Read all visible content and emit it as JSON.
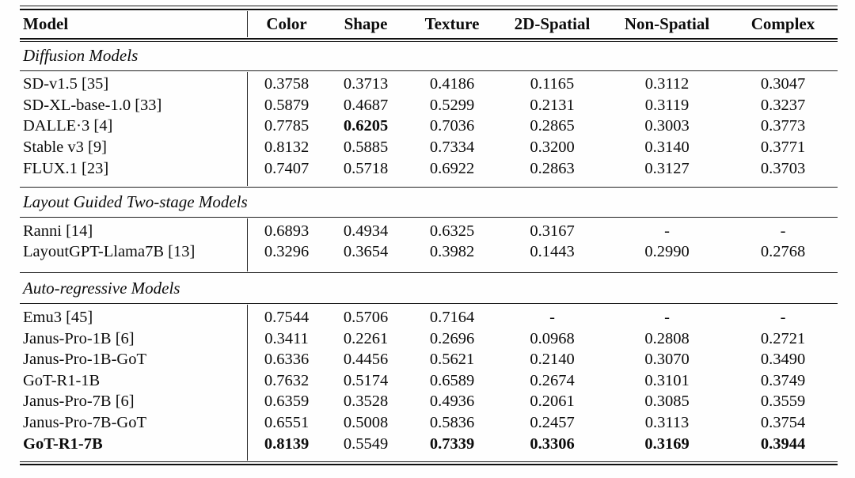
{
  "table": {
    "header": {
      "model": "Model",
      "metrics": [
        "Color",
        "Shape",
        "Texture",
        "2D-Spatial",
        "Non-Spatial",
        "Complex"
      ]
    },
    "sections": [
      {
        "title": "Diffusion Models",
        "rows": [
          {
            "model": "SD-v1.5 [35]",
            "values": [
              "0.3758",
              "0.3713",
              "0.4186",
              "0.1165",
              "0.3112",
              "0.3047"
            ]
          },
          {
            "model": "SD-XL-base-1.0 [33]",
            "values": [
              "0.5879",
              "0.4687",
              "0.5299",
              "0.2131",
              "0.3119",
              "0.3237"
            ]
          },
          {
            "model": "DALLE·3 [4]",
            "values": [
              "0.7785",
              "0.6205",
              "0.7036",
              "0.2865",
              "0.3003",
              "0.3773"
            ]
          },
          {
            "model": "Stable v3 [9]",
            "values": [
              "0.8132",
              "0.5885",
              "0.7334",
              "0.3200",
              "0.3140",
              "0.3771"
            ]
          },
          {
            "model": "FLUX.1 [23]",
            "values": [
              "0.7407",
              "0.5718",
              "0.6922",
              "0.2863",
              "0.3127",
              "0.3703"
            ]
          }
        ]
      },
      {
        "title": "Layout Guided Two-stage Models",
        "rows": [
          {
            "model": "Ranni [14]",
            "values": [
              "0.6893",
              "0.4934",
              "0.6325",
              "0.3167",
              "-",
              "-"
            ]
          },
          {
            "model": "LayoutGPT-Llama7B [13]",
            "values": [
              "0.3296",
              "0.3654",
              "0.3982",
              "0.1443",
              "0.2990",
              "0.2768"
            ]
          }
        ]
      },
      {
        "title": "Auto-regressive Models",
        "rows": [
          {
            "model": "Emu3 [45]",
            "values": [
              "0.7544",
              "0.5706",
              "0.7164",
              "-",
              "-",
              "-"
            ]
          },
          {
            "model": "Janus-Pro-1B [6]",
            "values": [
              "0.3411",
              "0.2261",
              "0.2696",
              "0.0968",
              "0.2808",
              "0.2721"
            ]
          },
          {
            "model": "Janus-Pro-1B-GoT",
            "values": [
              "0.6336",
              "0.4456",
              "0.5621",
              "0.2140",
              "0.3070",
              "0.3490"
            ]
          },
          {
            "model": "GoT-R1-1B",
            "values": [
              "0.7632",
              "0.5174",
              "0.6589",
              "0.2674",
              "0.3101",
              "0.3749"
            ]
          },
          {
            "model": "Janus-Pro-7B [6]",
            "values": [
              "0.6359",
              "0.3528",
              "0.4936",
              "0.2061",
              "0.3085",
              "0.3559"
            ]
          },
          {
            "model": "Janus-Pro-7B-GoT",
            "values": [
              "0.6551",
              "0.5008",
              "0.5836",
              "0.2457",
              "0.3113",
              "0.3754"
            ]
          },
          {
            "model": "GoT-R1-7B",
            "values": [
              "0.8139",
              "0.5549",
              "0.7339",
              "0.3306",
              "0.3169",
              "0.3944"
            ]
          }
        ]
      }
    ],
    "colors": {
      "background": "#ffffff",
      "text": "#0c0c0c",
      "rule": "#1a1a1a"
    }
  }
}
